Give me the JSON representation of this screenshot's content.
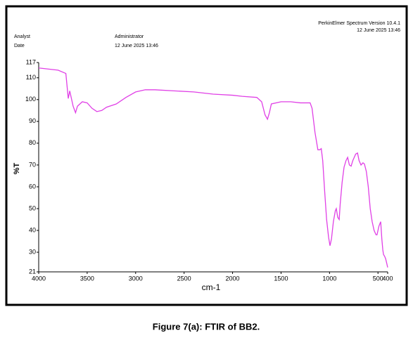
{
  "chart_data": {
    "type": "line",
    "instrument": "PerkinElmer Spectrum Version 10.4.1",
    "instrument_date": "12 June 2025 13:46",
    "analyst_label": "Analyst",
    "analyst": "Administrator",
    "date_label": "Date",
    "date": "12 June 2025 13:46",
    "xlabel": "cm-1",
    "ylabel": "%T",
    "x": [
      4000,
      3800,
      3720,
      3695,
      3680,
      3665,
      3645,
      3620,
      3600,
      3550,
      3500,
      3450,
      3400,
      3350,
      3300,
      3200,
      3100,
      3000,
      2900,
      2800,
      2600,
      2400,
      2200,
      2000,
      1900,
      1750,
      1700,
      1665,
      1640,
      1620,
      1600,
      1500,
      1400,
      1300,
      1200,
      1180,
      1150,
      1120,
      1100,
      1085,
      1070,
      1050,
      1030,
      1010,
      995,
      980,
      960,
      940,
      930,
      915,
      900,
      890,
      870,
      850,
      830,
      813,
      795,
      777,
      760,
      730,
      711,
      695,
      675,
      655,
      640,
      620,
      600,
      580,
      560,
      540,
      520,
      510,
      490,
      472,
      460,
      450,
      443,
      430,
      421,
      410,
      400
    ],
    "series": [
      {
        "color": "#e040e6",
        "values": [
          114.5,
          113.5,
          112,
          100.5,
          104,
          101,
          97,
          94,
          97,
          99,
          98.5,
          96,
          94.5,
          95,
          96.5,
          98,
          101,
          103.5,
          104.5,
          104.5,
          104,
          103.5,
          102.5,
          102,
          101.5,
          101,
          99,
          93,
          91,
          94,
          98,
          99,
          99,
          98.5,
          98.5,
          96,
          85,
          77,
          77,
          77.5,
          72,
          58,
          45,
          37,
          33,
          36,
          44,
          49,
          50,
          46,
          45,
          52,
          62,
          69,
          72,
          73.5,
          70,
          69.5,
          72,
          75,
          75.5,
          72,
          70,
          71,
          70.5,
          67,
          60,
          50,
          44,
          40,
          38,
          38,
          42,
          44,
          36,
          31,
          29,
          28,
          27,
          25,
          23
        ]
      }
    ],
    "xlim": [
      4000,
      400
    ],
    "ylim": [
      21,
      117
    ],
    "xticks": [
      4000,
      3500,
      3000,
      2500,
      2000,
      1500,
      1000,
      500,
      400
    ],
    "yticks": [
      117,
      110,
      100,
      90,
      80,
      70,
      60,
      50,
      40,
      30,
      21
    ],
    "caption": "Figure 7(a):  FTIR of BB2."
  }
}
